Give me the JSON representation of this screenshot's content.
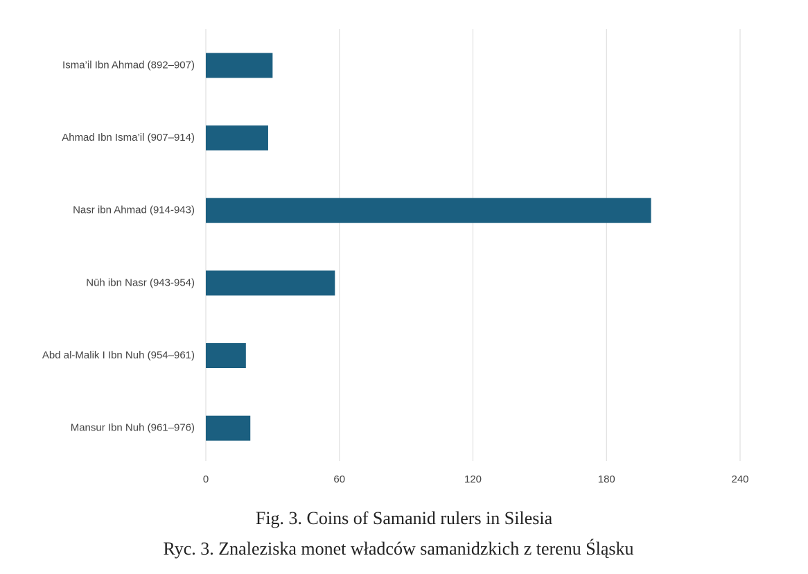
{
  "chart_data": {
    "type": "hbar",
    "title": "Fig. 3. Coins of Samanid rulers in Silesia",
    "subtitle": "Ryc. 3. Znaleziska monet władców samanidzkich z terenu Śląsku",
    "categories": [
      "Isma’il Ibn Ahmad (892–907)",
      "Ahmad Ibn Isma’il (907–914)",
      "Nasr ibn Ahmad (914-943)",
      "Nūh ibn Nasr (943-954)",
      "Abd al-Malik I Ibn Nuh (954–961)",
      "Mansur Ibn Nuh (961–976)"
    ],
    "values": [
      30,
      28,
      200,
      58,
      18,
      20
    ],
    "color": "#1b5f80",
    "xlim": [
      0,
      240
    ],
    "xticks": [
      0,
      60,
      120,
      180,
      240
    ],
    "grid": true
  }
}
